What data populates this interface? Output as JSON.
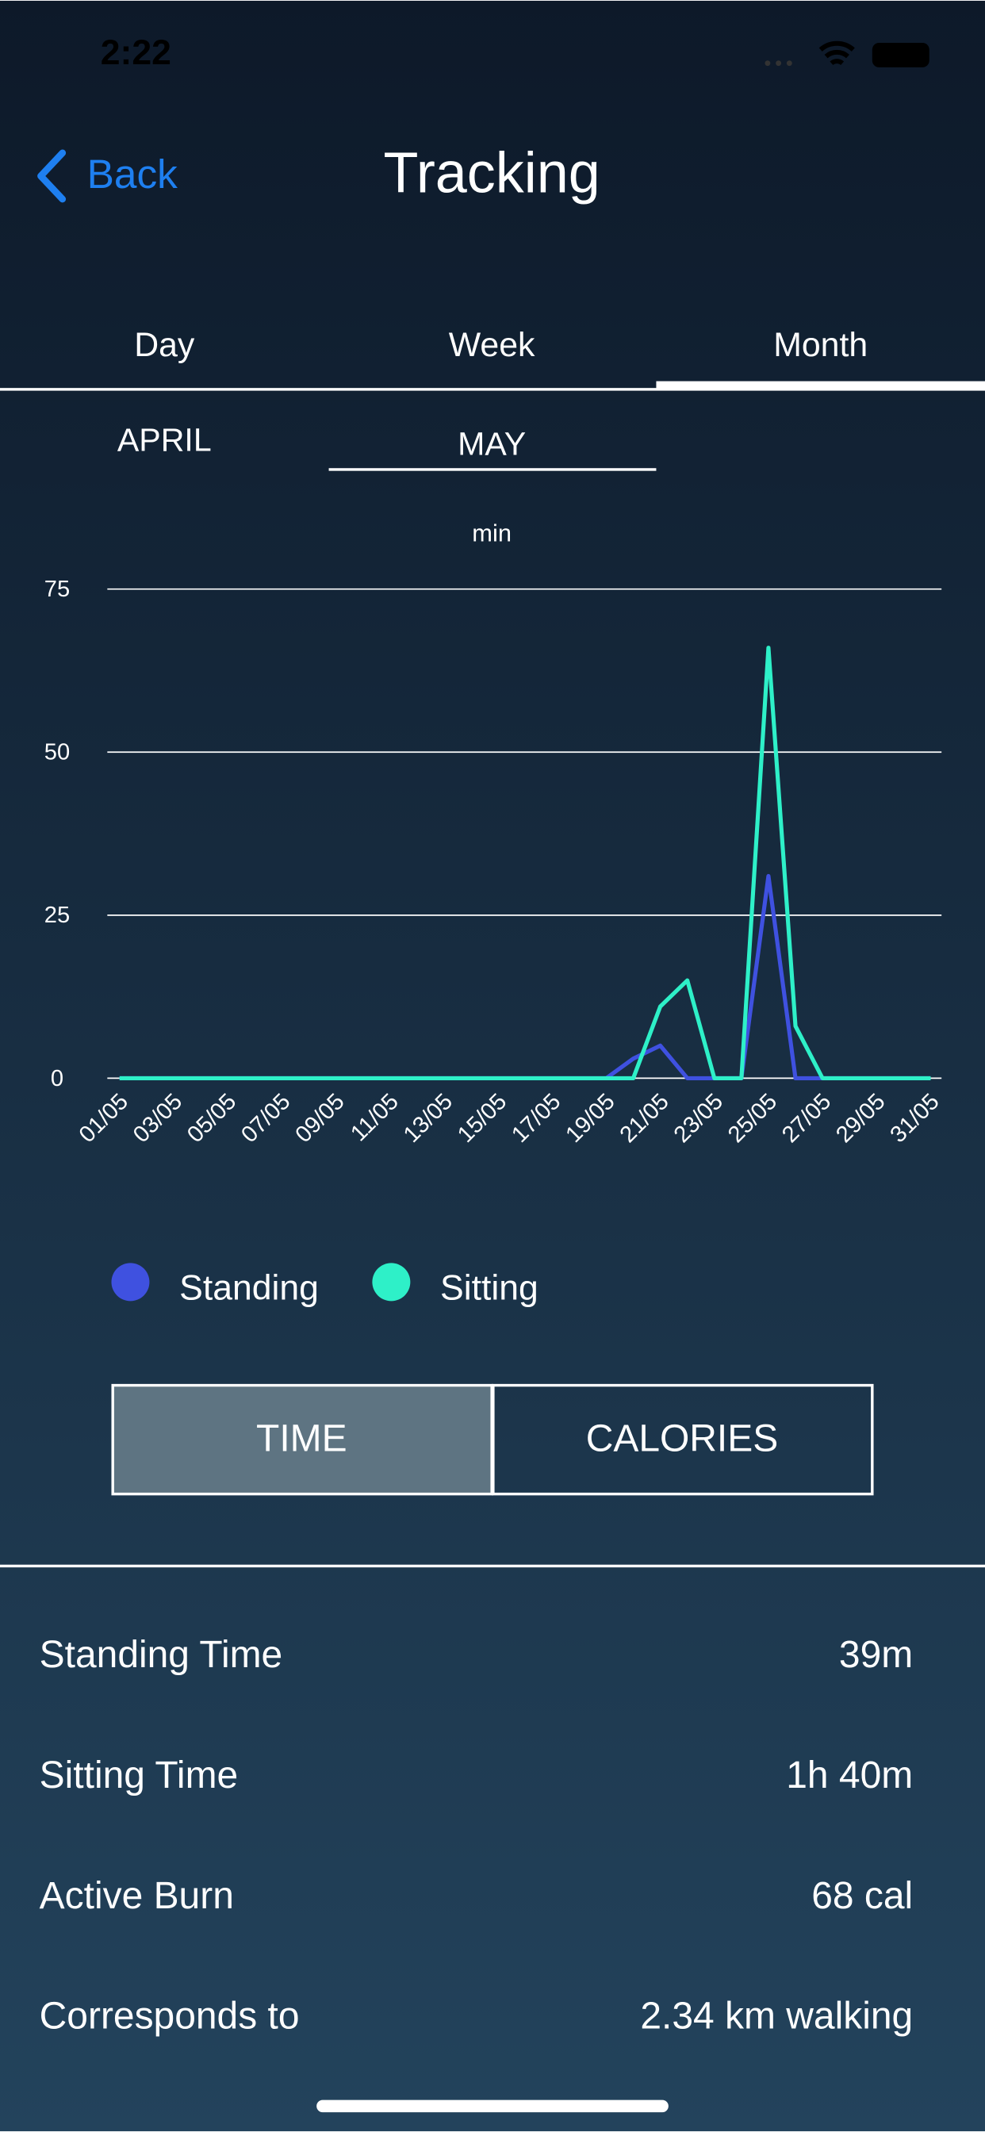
{
  "status_bar": {
    "time": "2:22"
  },
  "nav": {
    "back": "Back",
    "title": "Tracking"
  },
  "tabs": [
    "Day",
    "Week",
    "Month"
  ],
  "months": [
    "APRIL",
    "MAY"
  ],
  "chart_data": {
    "type": "line",
    "y_label": "min",
    "categories": [
      "01/05",
      null,
      "03/05",
      null,
      "05/05",
      null,
      "07/05",
      null,
      "09/05",
      null,
      "11/05",
      null,
      "13/05",
      null,
      "15/05",
      null,
      "17/05",
      null,
      "19/05",
      null,
      "21/05",
      null,
      "23/05",
      null,
      "25/05",
      null,
      "27/05",
      null,
      "29/05",
      null,
      "31/05"
    ],
    "series": [
      {
        "name": "Standing",
        "color": "#3f51e0",
        "values": [
          0,
          0,
          0,
          0,
          0,
          0,
          0,
          0,
          0,
          0,
          0,
          0,
          0,
          0,
          0,
          0,
          0,
          0,
          0,
          3,
          5,
          0,
          0,
          0,
          31,
          0,
          0,
          0,
          0,
          0,
          0
        ]
      },
      {
        "name": "Sitting",
        "color": "#2ef0c8",
        "values": [
          0,
          0,
          0,
          0,
          0,
          0,
          0,
          0,
          0,
          0,
          0,
          0,
          0,
          0,
          0,
          0,
          0,
          0,
          0,
          0,
          11,
          15,
          0,
          0,
          66,
          8,
          0,
          0,
          0,
          0,
          0
        ]
      }
    ],
    "ylim": [
      0,
      75
    ],
    "yticks": [
      0,
      25,
      50,
      75
    ],
    "grid": true
  },
  "toggle": [
    "TIME",
    "CALORIES"
  ],
  "stats": [
    [
      "Standing Time",
      "39m"
    ],
    [
      "Sitting Time",
      "1h 40m"
    ],
    [
      "Active Burn",
      "68 cal"
    ],
    [
      "Corresponds to",
      "2.34 km walking"
    ]
  ]
}
